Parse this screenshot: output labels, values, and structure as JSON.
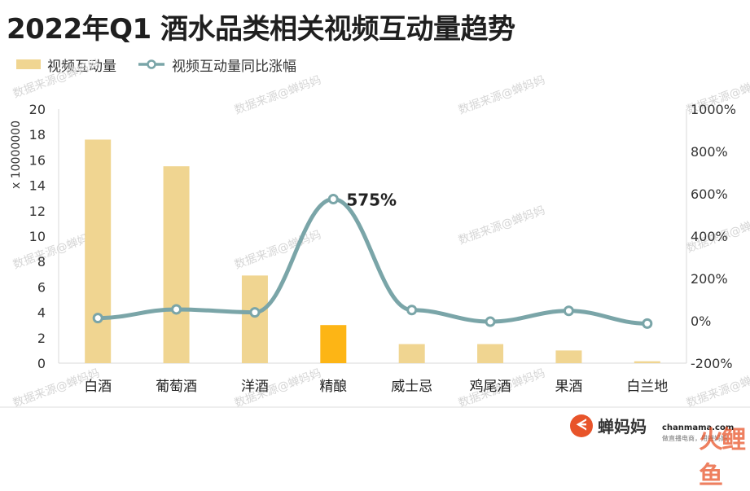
{
  "title": "2022年Q1 酒水品类相关视频互动量趋势",
  "legend": {
    "bar_label": "视频互动量",
    "line_label": "视频互动量同比涨幅"
  },
  "colors": {
    "bar": "#F0D591",
    "bar_highlight": "#FDB515",
    "line": "#7AA5A8",
    "marker_fill": "#ffffff"
  },
  "watermark_text": "数据来源@蝉妈妈",
  "brand": {
    "logo_glyph": "ᗕ",
    "name": "蝉妈妈",
    "domain": "chanmama.com",
    "slogan": "做直播电商，用蝉妈妈",
    "mark": "火鲤鱼"
  },
  "chart_data": {
    "type": "bar",
    "title": "2022年Q1 酒水品类相关视频互动量趋势",
    "categories": [
      "白酒",
      "葡萄酒",
      "洋酒",
      "精酿",
      "威士忌",
      "鸡尾酒",
      "果酒",
      "白兰地"
    ],
    "highlight_category": "精酿",
    "left_axis": {
      "label": "x 10000000",
      "ylim": [
        0,
        20
      ],
      "ticks": [
        0,
        2,
        4,
        6,
        8,
        10,
        12,
        14,
        16,
        18,
        20
      ]
    },
    "right_axis": {
      "ylim": [
        -200,
        1000
      ],
      "ticks": [
        -200,
        0,
        200,
        400,
        600,
        800,
        1000
      ],
      "tick_labels": [
        "-200%",
        "0%",
        "200%",
        "400%",
        "600%",
        "800%",
        "1000%"
      ]
    },
    "series": [
      {
        "name": "视频互动量",
        "type": "bar",
        "axis": "left",
        "values": [
          17.6,
          15.5,
          6.9,
          3.0,
          1.5,
          1.5,
          1.0,
          0.15
        ]
      },
      {
        "name": "视频互动量同比涨幅",
        "type": "line",
        "axis": "right",
        "values": [
          13,
          54,
          40,
          575,
          51,
          -4,
          47,
          -13
        ]
      }
    ],
    "annotations": [
      {
        "category": "精酿",
        "text": "575%"
      }
    ],
    "grid": false
  }
}
